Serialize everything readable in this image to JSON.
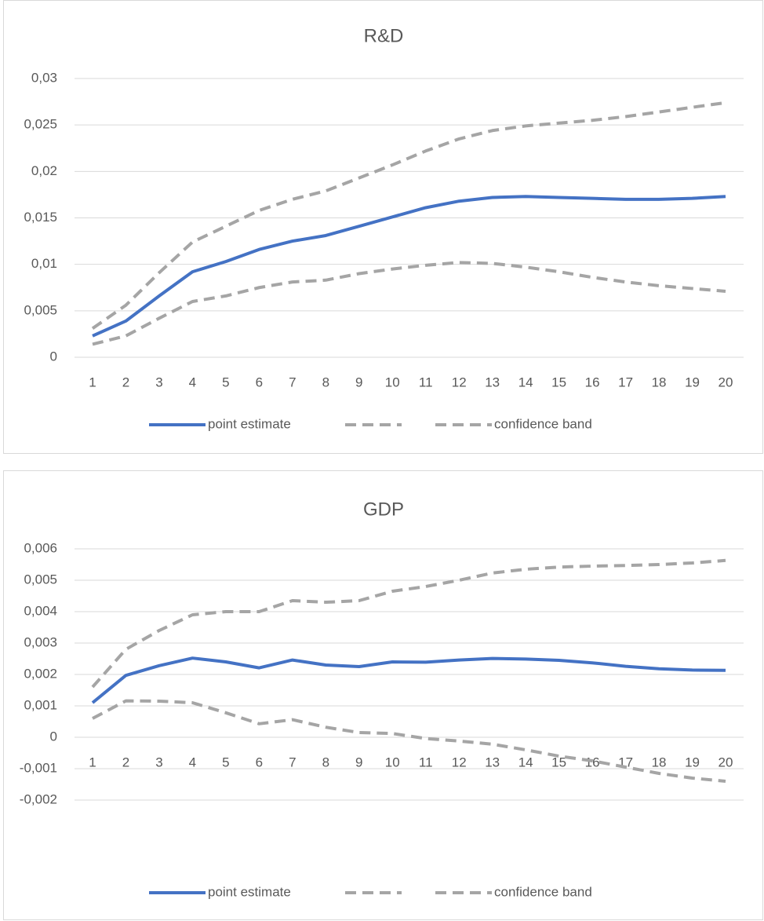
{
  "chart_data": [
    {
      "type": "line",
      "title": "R&D",
      "categories": [
        1,
        2,
        3,
        4,
        5,
        6,
        7,
        8,
        9,
        10,
        11,
        12,
        13,
        14,
        15,
        16,
        17,
        18,
        19,
        20
      ],
      "series": [
        {
          "name": "point estimate",
          "color": "#4472c4",
          "dashed": false,
          "values": [
            0.0023,
            0.0039,
            0.0066,
            0.0092,
            0.0103,
            0.0116,
            0.0125,
            0.0131,
            0.0141,
            0.0151,
            0.0161,
            0.0168,
            0.0172,
            0.0173,
            0.0172,
            0.0171,
            0.017,
            0.017,
            0.0171,
            0.0173
          ]
        },
        {
          "color": "#a5a5a5",
          "dashed": true,
          "values": [
            0.0031,
            0.0056,
            0.0091,
            0.0124,
            0.0141,
            0.0158,
            0.017,
            0.0179,
            0.0193,
            0.0207,
            0.0222,
            0.0235,
            0.0244,
            0.0249,
            0.0252,
            0.0255,
            0.0259,
            0.0264,
            0.0269,
            0.0274
          ]
        },
        {
          "name": "confidence band",
          "color": "#a5a5a5",
          "dashed": true,
          "values": [
            0.0014,
            0.0023,
            0.0042,
            0.006,
            0.0066,
            0.0075,
            0.0081,
            0.0083,
            0.009,
            0.0095,
            0.0099,
            0.0102,
            0.0101,
            0.0097,
            0.0092,
            0.0086,
            0.0081,
            0.0077,
            0.0074,
            0.0071
          ]
        }
      ],
      "ylim": [
        0,
        0.03
      ],
      "yticks": [
        0,
        {
          "value": 0.005,
          "label": "0,005"
        },
        {
          "value": 0.01,
          "label": "0,01"
        },
        {
          "value": 0.015,
          "label": "0,015"
        },
        {
          "value": 0.02,
          "label": "0,02"
        },
        {
          "value": 0.025,
          "label": "0,025"
        },
        {
          "value": 0.03,
          "label": "0,03"
        }
      ],
      "grid": true
    },
    {
      "type": "line",
      "title": "GDP",
      "categories": [
        1,
        2,
        3,
        4,
        5,
        6,
        7,
        8,
        9,
        10,
        11,
        12,
        13,
        14,
        15,
        16,
        17,
        18,
        19,
        20
      ],
      "series": [
        {
          "name": "point estimate",
          "color": "#4472c4",
          "dashed": false,
          "values": [
            0.0011,
            0.00197,
            0.00228,
            0.00252,
            0.0024,
            0.00221,
            0.00246,
            0.0023,
            0.00225,
            0.0024,
            0.00239,
            0.00246,
            0.00251,
            0.00249,
            0.00245,
            0.00237,
            0.00226,
            0.00218,
            0.00214,
            0.00213
          ]
        },
        {
          "color": "#a5a5a5",
          "dashed": true,
          "values": [
            0.0016,
            0.0028,
            0.0034,
            0.0039,
            0.004,
            0.004,
            0.00435,
            0.0043,
            0.00435,
            0.00465,
            0.0048,
            0.005,
            0.00523,
            0.00535,
            0.00542,
            0.00545,
            0.00547,
            0.0055,
            0.00555,
            0.00563
          ]
        },
        {
          "name": "confidence band",
          "color": "#a5a5a5",
          "dashed": true,
          "values": [
            0.0006,
            0.00116,
            0.00115,
            0.0011,
            0.00078,
            0.00043,
            0.00056,
            0.00032,
            0.00015,
            0.00012,
            -4e-05,
            -0.00012,
            -0.00022,
            -0.0004,
            -0.0006,
            -0.00075,
            -0.00095,
            -0.00115,
            -0.0013,
            -0.0014
          ]
        }
      ],
      "ylim": [
        -0.002,
        0.006
      ],
      "yticks": [
        {
          "value": -0.002,
          "label": "-0,002"
        },
        {
          "value": -0.001,
          "label": "-0,001"
        },
        0,
        {
          "value": 0.001,
          "label": "0,001"
        },
        {
          "value": 0.002,
          "label": "0,002"
        },
        {
          "value": 0.003,
          "label": "0,003"
        },
        {
          "value": 0.004,
          "label": "0,004"
        },
        {
          "value": 0.005,
          "label": "0,005"
        },
        {
          "value": 0.006,
          "label": "0,006"
        }
      ],
      "grid": true
    }
  ]
}
